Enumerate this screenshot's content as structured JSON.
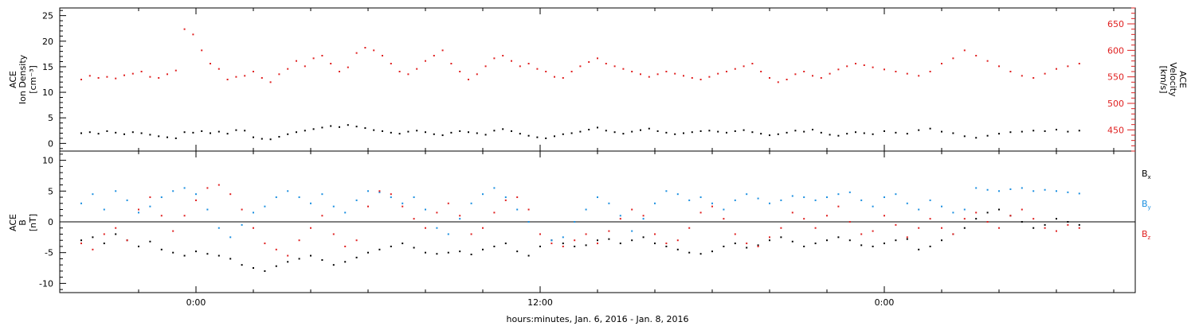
{
  "chart_data": [
    {
      "type": "scatter",
      "panel": "plasma",
      "ylabel_left": [
        "ACE",
        "Ion Density",
        "[cm⁻³]"
      ],
      "ylabel_right": [
        "ACE",
        "Velocity",
        "[km/s]"
      ],
      "ylim_left": [
        -1.5,
        26.5
      ],
      "yticks_left": [
        0,
        5,
        10,
        15,
        20,
        25
      ],
      "ylim_right": [
        410,
        680
      ],
      "yticks_right": [
        450,
        500,
        550,
        600,
        650
      ],
      "series": [
        {
          "axis": "left",
          "color": "#000000",
          "x": [
            -4.0,
            -3.7,
            -3.4,
            -3.1,
            -2.8,
            -2.5,
            -2.2,
            -1.9,
            -1.6,
            -1.3,
            -1.0,
            -0.7,
            -0.4,
            -0.1,
            0.2,
            0.5,
            0.8,
            1.1,
            1.4,
            1.7,
            2.0,
            2.3,
            2.6,
            2.9,
            3.2,
            3.5,
            3.8,
            4.1,
            4.4,
            4.7,
            5.0,
            5.3,
            5.6,
            5.9,
            6.2,
            6.5,
            6.8,
            7.1,
            7.4,
            7.7,
            8.0,
            8.3,
            8.6,
            8.9,
            9.2,
            9.5,
            9.8,
            10.1,
            10.4,
            10.7,
            11.0,
            11.3,
            11.6,
            11.9,
            12.2,
            12.5,
            12.8,
            13.1,
            13.4,
            13.7,
            14.0,
            14.3,
            14.6,
            14.9,
            15.2,
            15.5,
            15.8,
            16.1,
            16.4,
            16.7,
            17.0,
            17.3,
            17.6,
            17.9,
            18.2,
            18.5,
            18.8,
            19.1,
            19.4,
            19.7,
            20.0,
            20.3,
            20.6,
            20.9,
            21.2,
            21.5,
            21.8,
            22.1,
            22.4,
            22.7,
            23.0,
            23.3,
            23.6,
            24.0,
            24.4,
            24.8,
            25.2,
            25.6,
            26.0,
            26.4,
            26.8,
            27.2,
            27.6,
            28.0,
            28.4,
            28.8,
            29.2,
            29.6,
            30.0,
            30.4,
            30.8
          ],
          "y": [
            2.0,
            2.2,
            1.9,
            2.4,
            2.1,
            1.8,
            2.2,
            2.0,
            1.7,
            1.4,
            1.2,
            1.0,
            2.2,
            2.1,
            2.4,
            2.0,
            2.3,
            1.9,
            2.6,
            2.5,
            1.2,
            0.9,
            0.8,
            1.3,
            1.8,
            2.2,
            2.5,
            2.8,
            3.1,
            3.4,
            3.2,
            3.6,
            3.3,
            3.0,
            2.6,
            2.4,
            2.1,
            1.9,
            2.3,
            2.5,
            2.2,
            1.8,
            1.6,
            2.1,
            2.4,
            2.2,
            2.0,
            1.7,
            2.5,
            2.8,
            2.4,
            1.9,
            1.5,
            1.2,
            1.0,
            1.4,
            1.8,
            2.0,
            2.3,
            2.7,
            3.1,
            2.5,
            2.2,
            1.9,
            2.3,
            2.6,
            2.9,
            2.4,
            2.1,
            1.8,
            2.0,
            2.2,
            2.4,
            2.5,
            2.3,
            2.1,
            2.4,
            2.6,
            2.2,
            1.9,
            1.6,
            1.8,
            2.1,
            2.5,
            2.3,
            2.7,
            2.1,
            1.7,
            1.5,
            1.9,
            2.2,
            2.0,
            1.8,
            2.4,
            2.1,
            1.9,
            2.6,
            2.9,
            2.3,
            2.0,
            1.4,
            1.1,
            1.5,
            1.9,
            2.2,
            2.3,
            2.5,
            2.4,
            2.7,
            2.3,
            2.5
          ]
        },
        {
          "axis": "right",
          "color": "#e02020",
          "x": [
            -4.0,
            -3.7,
            -3.4,
            -3.1,
            -2.8,
            -2.5,
            -2.2,
            -1.9,
            -1.6,
            -1.3,
            -1.0,
            -0.7,
            -0.4,
            -0.1,
            0.2,
            0.5,
            0.8,
            1.1,
            1.4,
            1.7,
            2.0,
            2.3,
            2.6,
            2.9,
            3.2,
            3.5,
            3.8,
            4.1,
            4.4,
            4.7,
            5.0,
            5.3,
            5.6,
            5.9,
            6.2,
            6.5,
            6.8,
            7.1,
            7.4,
            7.7,
            8.0,
            8.3,
            8.6,
            8.9,
            9.2,
            9.5,
            9.8,
            10.1,
            10.4,
            10.7,
            11.0,
            11.3,
            11.6,
            11.9,
            12.2,
            12.5,
            12.8,
            13.1,
            13.4,
            13.7,
            14.0,
            14.3,
            14.6,
            14.9,
            15.2,
            15.5,
            15.8,
            16.1,
            16.4,
            16.7,
            17.0,
            17.3,
            17.6,
            17.9,
            18.2,
            18.5,
            18.8,
            19.1,
            19.4,
            19.7,
            20.0,
            20.3,
            20.6,
            20.9,
            21.2,
            21.5,
            21.8,
            22.1,
            22.4,
            22.7,
            23.0,
            23.3,
            23.6,
            24.0,
            24.4,
            24.8,
            25.2,
            25.6,
            26.0,
            26.4,
            26.8,
            27.2,
            27.6,
            28.0,
            28.4,
            28.8,
            29.2,
            29.6,
            30.0,
            30.4,
            30.8
          ],
          "y": [
            545,
            552,
            548,
            550,
            547,
            553,
            556,
            560,
            550,
            548,
            555,
            562,
            640,
            630,
            600,
            575,
            565,
            545,
            550,
            552,
            560,
            548,
            540,
            555,
            565,
            580,
            570,
            585,
            590,
            575,
            560,
            568,
            595,
            605,
            600,
            590,
            575,
            560,
            555,
            565,
            580,
            590,
            600,
            575,
            560,
            545,
            555,
            570,
            585,
            590,
            580,
            570,
            575,
            565,
            560,
            550,
            548,
            560,
            570,
            578,
            585,
            575,
            570,
            565,
            560,
            555,
            550,
            555,
            560,
            556,
            552,
            548,
            545,
            550,
            556,
            560,
            565,
            570,
            575,
            560,
            548,
            540,
            545,
            555,
            560,
            552,
            548,
            556,
            564,
            570,
            575,
            572,
            568,
            564,
            560,
            556,
            552,
            560,
            575,
            585,
            600,
            590,
            580,
            570,
            560,
            552,
            548,
            556,
            565,
            570,
            575
          ]
        }
      ]
    },
    {
      "type": "scatter",
      "panel": "magnetic-field",
      "ylabel_left": [
        "ACE",
        "B",
        "[nT]"
      ],
      "ylim_left": [
        -11.5,
        11.5
      ],
      "yticks_left": [
        -10,
        -5,
        0,
        5,
        10
      ],
      "zero_line": true,
      "series": [
        {
          "name": "Bx",
          "color": "#000000",
          "x": [
            -4.0,
            -3.6,
            -3.2,
            -2.8,
            -2.4,
            -2.0,
            -1.6,
            -1.2,
            -0.8,
            -0.4,
            0.0,
            0.4,
            0.8,
            1.2,
            1.6,
            2.0,
            2.4,
            2.8,
            3.2,
            3.6,
            4.0,
            4.4,
            4.8,
            5.2,
            5.6,
            6.0,
            6.4,
            6.8,
            7.2,
            7.6,
            8.0,
            8.4,
            8.8,
            9.2,
            9.6,
            10.0,
            10.4,
            10.8,
            11.2,
            11.6,
            12.0,
            12.4,
            12.8,
            13.2,
            13.6,
            14.0,
            14.4,
            14.8,
            15.2,
            15.6,
            16.0,
            16.4,
            16.8,
            17.2,
            17.6,
            18.0,
            18.4,
            18.8,
            19.2,
            19.6,
            20.0,
            20.4,
            20.8,
            21.2,
            21.6,
            22.0,
            22.4,
            22.8,
            23.2,
            23.6,
            24.0,
            24.4,
            24.8,
            25.2,
            25.6,
            26.0,
            26.4,
            26.8,
            27.2,
            27.6,
            28.0,
            28.4,
            28.8,
            29.2,
            29.6,
            30.0,
            30.4,
            30.8
          ],
          "y": [
            -3.0,
            -2.5,
            -3.5,
            -2.0,
            -3.0,
            -4.0,
            -3.2,
            -4.5,
            -5.0,
            -5.5,
            -4.8,
            -5.2,
            -5.5,
            -6.0,
            -7.0,
            -7.5,
            -8.0,
            -7.2,
            -6.5,
            -6.0,
            -5.5,
            -6.2,
            -7.0,
            -6.5,
            -5.8,
            -5.0,
            -4.5,
            -4.0,
            -3.5,
            -4.2,
            -5.0,
            -5.2,
            -5.0,
            -4.8,
            -5.3,
            -4.5,
            -4.0,
            -3.5,
            -4.8,
            -5.5,
            -4.0,
            -3.0,
            -3.5,
            -4.0,
            -3.8,
            -3.0,
            -2.8,
            -3.5,
            -3.0,
            -2.5,
            -3.5,
            -4.0,
            -4.5,
            -5.0,
            -5.2,
            -4.8,
            -4.0,
            -3.5,
            -4.2,
            -3.8,
            -3.0,
            -2.5,
            -3.2,
            -4.0,
            -3.5,
            -3.0,
            -2.5,
            -3.0,
            -3.8,
            -4.0,
            -3.5,
            -3.0,
            -2.8,
            -4.5,
            -4.0,
            -3.0,
            -2.0,
            -1.0,
            0.5,
            1.5,
            2.0,
            1.0,
            0.0,
            -1.0,
            -0.5,
            0.5,
            0.0,
            -0.5
          ]
        },
        {
          "name": "By",
          "color": "#1a8fe0",
          "x": [
            -4.0,
            -3.6,
            -3.2,
            -2.8,
            -2.4,
            -2.0,
            -1.6,
            -1.2,
            -0.8,
            -0.4,
            0.0,
            0.4,
            0.8,
            1.2,
            1.6,
            2.0,
            2.4,
            2.8,
            3.2,
            3.6,
            4.0,
            4.4,
            4.8,
            5.2,
            5.6,
            6.0,
            6.4,
            6.8,
            7.2,
            7.6,
            8.0,
            8.4,
            8.8,
            9.2,
            9.6,
            10.0,
            10.4,
            10.8,
            11.2,
            11.6,
            12.0,
            12.4,
            12.8,
            13.2,
            13.6,
            14.0,
            14.4,
            14.8,
            15.2,
            15.6,
            16.0,
            16.4,
            16.8,
            17.2,
            17.6,
            18.0,
            18.4,
            18.8,
            19.2,
            19.6,
            20.0,
            20.4,
            20.8,
            21.2,
            21.6,
            22.0,
            22.4,
            22.8,
            23.2,
            23.6,
            24.0,
            24.4,
            24.8,
            25.2,
            25.6,
            26.0,
            26.4,
            26.8,
            27.2,
            27.6,
            28.0,
            28.4,
            28.8,
            29.2,
            29.6,
            30.0,
            30.4,
            30.8
          ],
          "y": [
            3.0,
            4.5,
            2.0,
            5.0,
            3.5,
            1.5,
            2.5,
            4.0,
            5.0,
            5.5,
            4.5,
            2.0,
            -1.0,
            -2.5,
            -0.5,
            1.5,
            2.5,
            4.0,
            5.0,
            4.0,
            3.0,
            4.5,
            2.5,
            1.5,
            3.5,
            5.0,
            4.8,
            4.0,
            3.0,
            4.0,
            2.0,
            -1.0,
            -2.0,
            0.5,
            3.0,
            4.5,
            5.5,
            4.0,
            2.0,
            0.0,
            -2.0,
            -3.0,
            -2.5,
            0.0,
            2.0,
            4.0,
            3.0,
            1.0,
            -1.5,
            0.5,
            3.0,
            5.0,
            4.5,
            3.5,
            4.0,
            3.0,
            2.0,
            3.5,
            4.5,
            3.8,
            3.0,
            3.5,
            4.2,
            4.0,
            3.5,
            4.0,
            4.5,
            4.8,
            3.5,
            2.5,
            4.0,
            4.5,
            3.0,
            2.0,
            3.5,
            2.5,
            1.5,
            2.0,
            5.5,
            5.2,
            5.0,
            5.3,
            5.5,
            5.0,
            5.2,
            5.0,
            4.8,
            4.6
          ]
        },
        {
          "name": "Bz",
          "color": "#e02020",
          "x": [
            -4.0,
            -3.6,
            -3.2,
            -2.8,
            -2.4,
            -2.0,
            -1.6,
            -1.2,
            -0.8,
            -0.4,
            0.0,
            0.4,
            0.8,
            1.2,
            1.6,
            2.0,
            2.4,
            2.8,
            3.2,
            3.6,
            4.0,
            4.4,
            4.8,
            5.2,
            5.6,
            6.0,
            6.4,
            6.8,
            7.2,
            7.6,
            8.0,
            8.4,
            8.8,
            9.2,
            9.6,
            10.0,
            10.4,
            10.8,
            11.2,
            11.6,
            12.0,
            12.4,
            12.8,
            13.2,
            13.6,
            14.0,
            14.4,
            14.8,
            15.2,
            15.6,
            16.0,
            16.4,
            16.8,
            17.2,
            17.6,
            18.0,
            18.4,
            18.8,
            19.2,
            19.6,
            20.0,
            20.4,
            20.8,
            21.2,
            21.6,
            22.0,
            22.4,
            22.8,
            23.2,
            23.6,
            24.0,
            24.4,
            24.8,
            25.2,
            25.6,
            26.0,
            26.4,
            26.8,
            27.2,
            27.6,
            28.0,
            28.4,
            28.8,
            29.2,
            29.6,
            30.0,
            30.4,
            30.8
          ],
          "y": [
            -3.5,
            -4.5,
            -2.0,
            -1.0,
            -3.0,
            2.0,
            4.0,
            1.0,
            -1.5,
            1.0,
            3.5,
            5.5,
            6.0,
            4.5,
            2.0,
            -1.0,
            -3.5,
            -4.5,
            -5.5,
            -3.0,
            -1.0,
            1.0,
            -2.0,
            -4.0,
            -3.0,
            2.5,
            5.0,
            4.5,
            2.5,
            0.5,
            -1.0,
            1.5,
            3.0,
            1.0,
            -2.0,
            -1.0,
            1.5,
            3.5,
            4.0,
            2.0,
            -2.0,
            -3.5,
            -4.0,
            -3.0,
            -2.0,
            -3.5,
            -1.5,
            0.5,
            2.0,
            1.0,
            -2.0,
            -3.5,
            -3.0,
            -1.0,
            1.5,
            2.5,
            0.5,
            -2.0,
            -3.5,
            -4.0,
            -2.5,
            -1.0,
            1.5,
            0.5,
            -1.0,
            1.0,
            2.5,
            0.0,
            -2.0,
            -1.5,
            1.0,
            -0.5,
            -2.5,
            -1.0,
            0.5,
            -1.0,
            -2.0,
            0.5,
            1.5,
            0.0,
            -1.0,
            1.0,
            2.0,
            0.5,
            -1.0,
            -1.5,
            -0.5,
            -1.0
          ]
        }
      ],
      "legend": {
        "placement": "right",
        "labels": [
          {
            "base": "B",
            "sub": "x"
          },
          {
            "base": "B",
            "sub": "y"
          },
          {
            "base": "B",
            "sub": "z"
          }
        ]
      }
    }
  ],
  "xaxis": {
    "xlim": [
      -4.75,
      32.75
    ],
    "major_ticks": [
      0,
      12,
      24
    ],
    "tick_labels": [
      "0:00",
      "12:00",
      "0:00"
    ],
    "minor_ticks": [
      -2,
      2,
      4,
      6,
      8,
      10,
      14,
      16,
      18,
      20,
      22,
      26,
      28,
      30,
      32
    ],
    "label": "hours:minutes, Jan.  6, 2016 - Jan.  8, 2016"
  },
  "colors": {
    "black": "#000000",
    "red": "#e02020",
    "blue": "#1a8fe0"
  }
}
